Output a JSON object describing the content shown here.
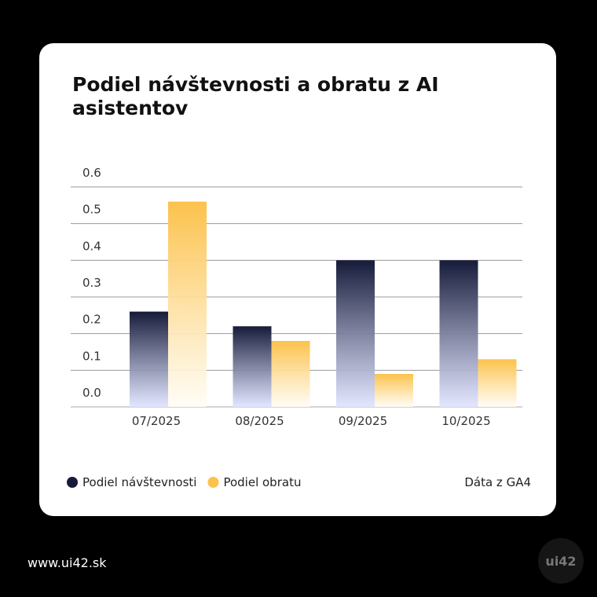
{
  "chart_data": {
    "type": "bar",
    "title": "Podiel návštevnosti a obratu z AI asistentov",
    "categories": [
      "07/2025",
      "08/2025",
      "09/2025",
      "10/2025"
    ],
    "series": [
      {
        "name": "Podiel návštevnosti",
        "color": "#161b3a",
        "values": [
          0.26,
          0.22,
          0.4,
          0.4
        ]
      },
      {
        "name": "Podiel obratu",
        "color": "#fcc24c",
        "values": [
          0.56,
          0.18,
          0.09,
          0.13
        ]
      }
    ],
    "ylim": [
      0,
      0.6
    ],
    "yticks": [
      {
        "value": 0,
        "label": "0.0"
      },
      0.1,
      0.2,
      0.3,
      0.4,
      0.5,
      0.6
    ],
    "grid": true,
    "legend": "bottom-left",
    "source": "Dáta z GA4"
  },
  "footer": {
    "url": "www.ui42.sk",
    "logo": "ui42"
  }
}
